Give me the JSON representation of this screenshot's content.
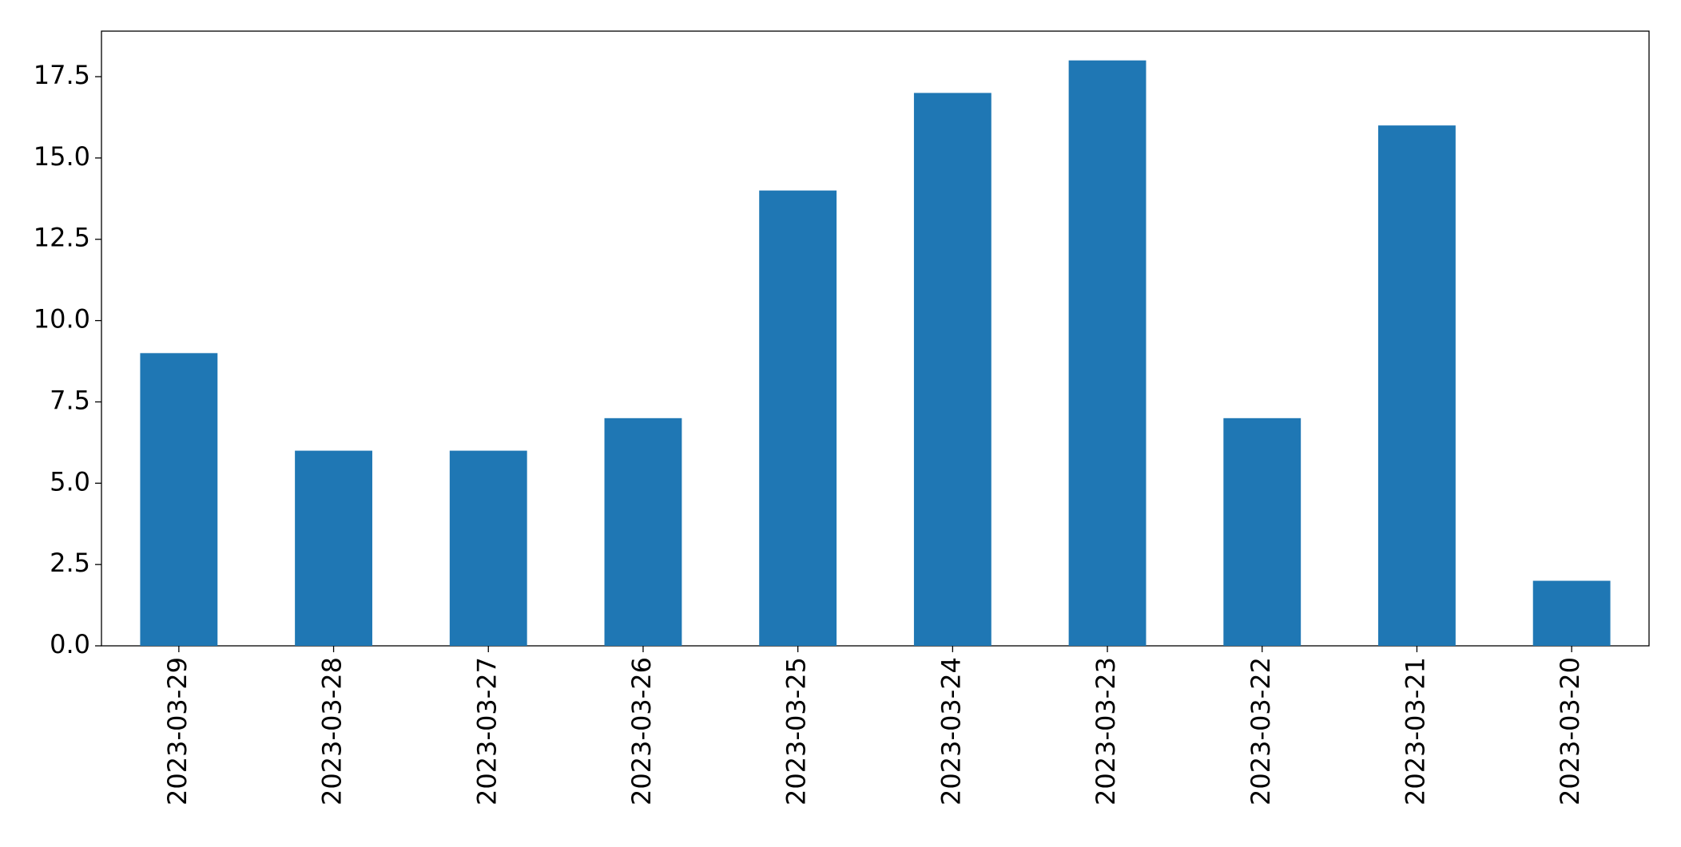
{
  "chart_data": {
    "type": "bar",
    "categories": [
      "2023-03-29",
      "2023-03-28",
      "2023-03-27",
      "2023-03-26",
      "2023-03-25",
      "2023-03-24",
      "2023-03-23",
      "2023-03-22",
      "2023-03-21",
      "2023-03-20"
    ],
    "values": [
      9,
      6,
      6,
      7,
      14,
      17,
      18,
      7,
      16,
      2
    ],
    "color": "#1f77b4",
    "ylim": [
      0,
      18.9
    ],
    "yticks": [
      {
        "value": 0,
        "label": "0.0"
      },
      2.5,
      {
        "value": 5,
        "label": "5.0"
      },
      7.5,
      {
        "value": 10,
        "label": "10.0"
      },
      12.5,
      {
        "value": 15,
        "label": "15.0"
      },
      17.5
    ],
    "grid": false
  }
}
